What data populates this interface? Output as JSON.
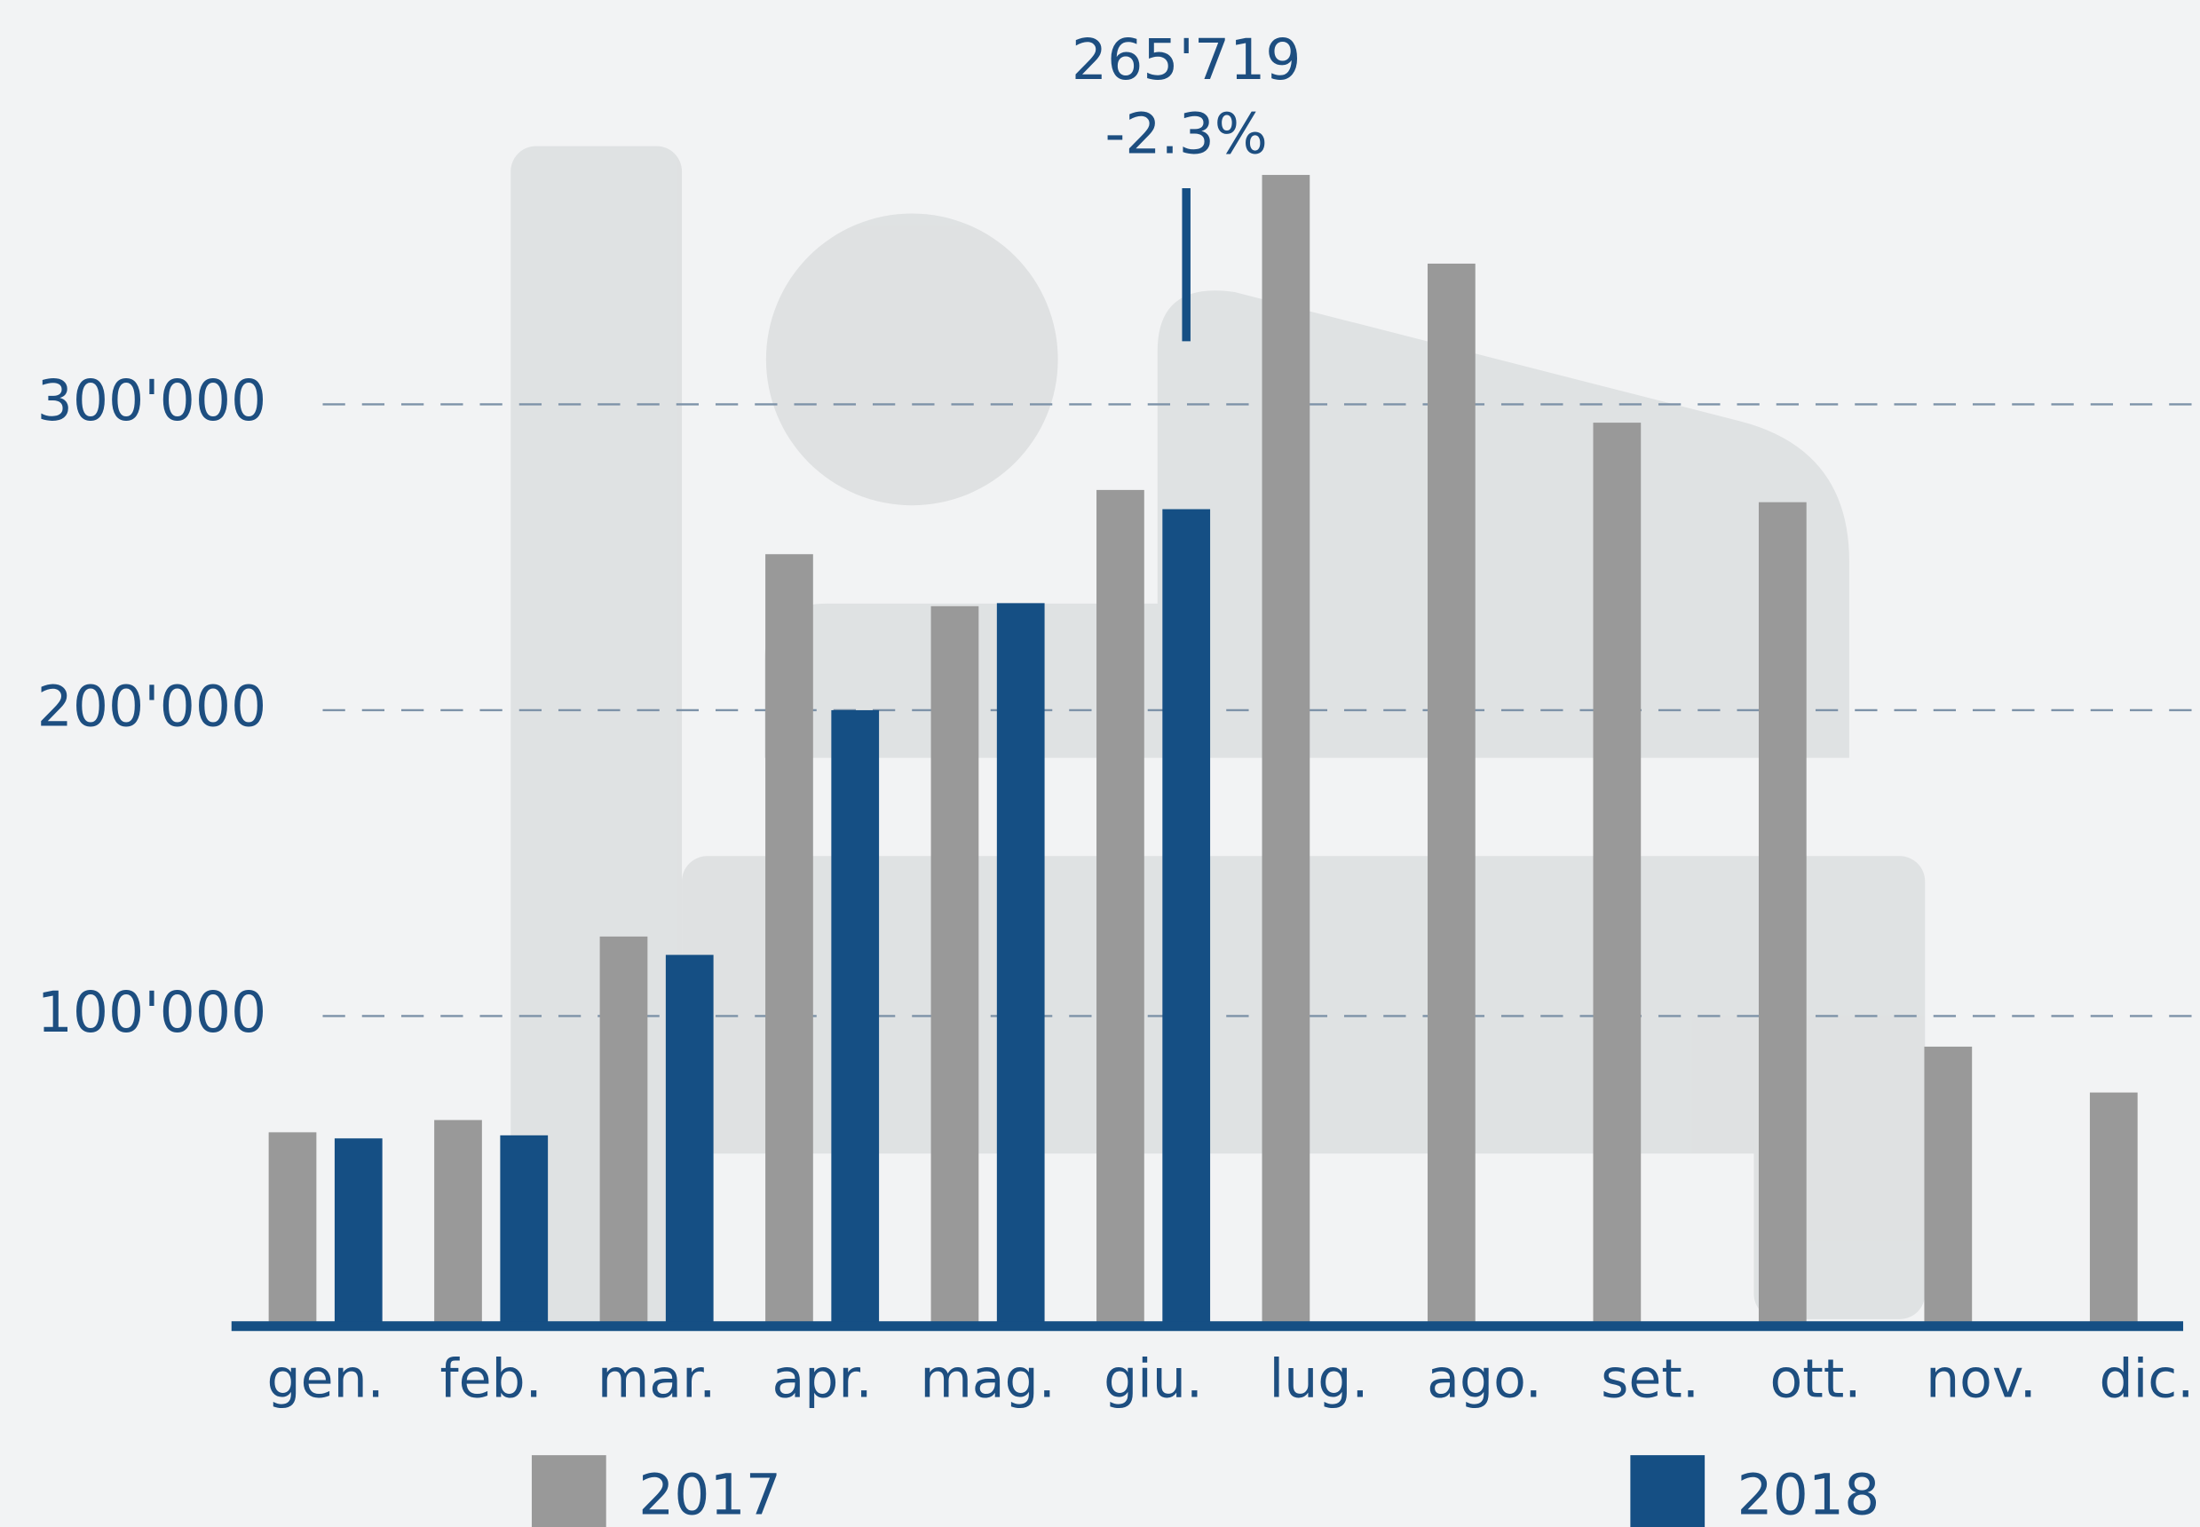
{
  "chart_data": {
    "type": "bar",
    "categories": [
      "gen.",
      "feb.",
      "mar.",
      "apr.",
      "mag.",
      "giu.",
      "lug.",
      "ago.",
      "set.",
      "ott.",
      "nov.",
      "dic."
    ],
    "series": [
      {
        "name": "2017",
        "color": "#999999",
        "values": [
          62000,
          66000,
          126000,
          251000,
          234000,
          272000,
          375000,
          346000,
          294000,
          268000,
          90000,
          75000
        ]
      },
      {
        "name": "2018",
        "color": "#154f84",
        "values": [
          60000,
          61000,
          120000,
          200000,
          235000,
          265719,
          null,
          null,
          null,
          null,
          null,
          null
        ],
        "value_labels": [
          null,
          null,
          null,
          null,
          null,
          "265'719",
          null,
          null,
          null,
          null,
          null,
          null
        ]
      }
    ],
    "annotation": "-2.3%",
    "ylim": [
      0,
      420000
    ],
    "yticks": [
      {
        "value": 100000,
        "label": "100'000"
      },
      {
        "value": 200000,
        "label": "200'000"
      },
      {
        "value": 300000,
        "label": "300'000"
      }
    ],
    "grid": true
  }
}
